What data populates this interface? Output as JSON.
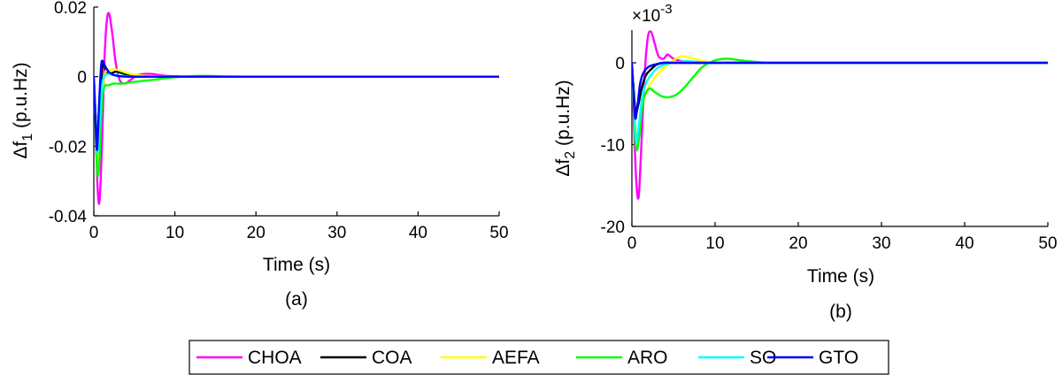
{
  "chart_data": [
    {
      "type": "line",
      "caption": "(a)",
      "xlabel": "Time (s)",
      "ylabel_main": "Δf",
      "ylabel_sub": "1",
      "ylabel_unit": " (p.u.Hz)",
      "xlim": [
        0,
        50
      ],
      "ylim": [
        -0.04,
        0.02
      ],
      "xticks": [
        0,
        10,
        20,
        30,
        40,
        50
      ],
      "yticks": [
        -0.04,
        -0.02,
        0,
        0.02
      ],
      "ytick_labels": [
        "-0.04",
        "-0.02",
        "0",
        "0.02"
      ],
      "xtick_labels": [
        "0",
        "10",
        "20",
        "30",
        "40",
        "50"
      ],
      "grid": false,
      "series": [
        {
          "name": "CHOA",
          "x": [
            0,
            0.2,
            0.45,
            0.7,
            1.0,
            1.3,
            1.6,
            1.9,
            2.3,
            2.7,
            3.2,
            3.8,
            4.5,
            5.5,
            7,
            9,
            12,
            20,
            50
          ],
          "y": [
            0,
            -0.012,
            -0.031,
            -0.036,
            -0.02,
            0.004,
            0.016,
            0.018,
            0.012,
            0.004,
            -0.001,
            -0.002,
            -0.001,
            0.0005,
            0.0008,
            0.0002,
            0,
            0,
            0
          ]
        },
        {
          "name": "COA",
          "x": [
            0,
            0.2,
            0.45,
            0.7,
            1.0,
            1.3,
            1.7,
            2.2,
            2.8,
            3.5,
            4.5,
            6,
            8,
            12,
            20,
            50
          ],
          "y": [
            0,
            -0.01,
            -0.019,
            -0.012,
            0.002,
            0.003,
            0.001,
            0.001,
            0.0015,
            0.001,
            0.0003,
            0,
            0,
            0,
            0,
            0
          ]
        },
        {
          "name": "AEFA",
          "x": [
            0,
            0.2,
            0.45,
            0.7,
            1.0,
            1.4,
            2.0,
            2.8,
            3.5,
            4.5,
            6,
            8,
            11,
            15,
            20,
            50
          ],
          "y": [
            0,
            -0.012,
            -0.026,
            -0.02,
            -0.006,
            0.001,
            0.002,
            0.002,
            0.0015,
            0.0008,
            0.0003,
            0.0001,
            0,
            0,
            0,
            0
          ]
        },
        {
          "name": "ARO",
          "x": [
            0,
            0.2,
            0.45,
            0.7,
            1.0,
            1.3,
            1.8,
            2.5,
            3.5,
            5,
            7,
            9,
            11,
            14,
            20,
            50
          ],
          "y": [
            0,
            -0.013,
            -0.028,
            -0.024,
            -0.008,
            -0.003,
            -0.0025,
            -0.002,
            -0.002,
            -0.0015,
            -0.001,
            -0.0004,
            0,
            0.0002,
            0,
            0
          ]
        },
        {
          "name": "SO",
          "x": [
            0,
            0.2,
            0.45,
            0.7,
            1.0,
            1.3,
            1.8,
            2.5,
            3.5,
            5,
            7,
            10,
            20,
            50
          ],
          "y": [
            0,
            -0.011,
            -0.022,
            -0.014,
            -0.003,
            0.0,
            0.0008,
            0.0005,
            0.0002,
            0,
            0,
            0,
            0,
            0
          ]
        },
        {
          "name": "GTO",
          "x": [
            0,
            0.2,
            0.4,
            0.65,
            0.9,
            1.1,
            1.4,
            1.8,
            2.3,
            3,
            4,
            6,
            10,
            50
          ],
          "y": [
            0,
            -0.012,
            -0.021,
            -0.008,
            0.003,
            0.0045,
            0.003,
            0.0015,
            0.0006,
            0.0002,
            0,
            0,
            0,
            0
          ]
        }
      ]
    },
    {
      "type": "line",
      "caption": "(b)",
      "xlabel": "Time (s)",
      "ylabel_main": "Δf",
      "ylabel_sub": "2",
      "ylabel_unit": " (p.u.Hz)",
      "multiplier_base": "×10",
      "multiplier_exp": "-3",
      "xlim": [
        0,
        50
      ],
      "ylim": [
        -20,
        4
      ],
      "xticks": [
        0,
        10,
        20,
        30,
        40,
        50
      ],
      "yticks": [
        -20,
        -10,
        0
      ],
      "ytick_labels": [
        "-20",
        "-10",
        "0"
      ],
      "xtick_labels": [
        "0",
        "10",
        "20",
        "30",
        "40",
        "50"
      ],
      "grid": false,
      "series": [
        {
          "name": "CHOA",
          "x": [
            0,
            0.2,
            0.5,
            0.8,
            1.1,
            1.5,
            1.9,
            2.3,
            2.7,
            3.2,
            3.8,
            4.3,
            5,
            6,
            8,
            12,
            20,
            50
          ],
          "y": [
            0,
            -6,
            -14,
            -16.5,
            -11,
            -2,
            3,
            3.8,
            2.5,
            0.8,
            0.5,
            1.0,
            0.5,
            0.2,
            0,
            0,
            0,
            0
          ]
        },
        {
          "name": "COA",
          "x": [
            0,
            0.2,
            0.45,
            0.8,
            1.2,
            1.7,
            2.3,
            3,
            4,
            6,
            10,
            50
          ],
          "y": [
            0,
            -3,
            -6,
            -5,
            -3,
            -1.5,
            -0.8,
            -0.2,
            0,
            0,
            0,
            0
          ]
        },
        {
          "name": "AEFA",
          "x": [
            0,
            0.2,
            0.5,
            0.9,
            1.3,
            2.0,
            3.0,
            4.0,
            5.0,
            6.0,
            7.5,
            9,
            11,
            15,
            50
          ],
          "y": [
            0,
            -4,
            -9,
            -8,
            -5,
            -3,
            -1.5,
            -0.5,
            0.3,
            0.8,
            0.5,
            0.1,
            0,
            0,
            0
          ]
        },
        {
          "name": "ARO",
          "x": [
            0,
            0.2,
            0.5,
            0.9,
            1.3,
            2.0,
            2.8,
            3.6,
            4.5,
            5.5,
            6.5,
            7.5,
            8.5,
            10,
            11.5,
            13,
            15,
            17,
            20,
            50
          ],
          "y": [
            0,
            -5,
            -10.5,
            -9,
            -5,
            -3.2,
            -3.6,
            -4.1,
            -4.2,
            -3.8,
            -2.8,
            -1.6,
            -0.5,
            0.3,
            0.5,
            0.3,
            0.1,
            0,
            0,
            0
          ]
        },
        {
          "name": "SO",
          "x": [
            0,
            0.2,
            0.5,
            0.8,
            1.2,
            1.7,
            2.3,
            3.0,
            4.0,
            5.0,
            6.5,
            8,
            12,
            50
          ],
          "y": [
            0,
            -4,
            -9.5,
            -8,
            -4.5,
            -2.5,
            -1.5,
            -0.7,
            -0.2,
            0,
            0.2,
            0.1,
            0,
            0
          ]
        },
        {
          "name": "GTO",
          "x": [
            0,
            0.15,
            0.4,
            0.7,
            1.0,
            1.4,
            2.0,
            2.8,
            3.8,
            5,
            8,
            50
          ],
          "y": [
            0,
            -3,
            -6.8,
            -5,
            -2.5,
            -1.2,
            -0.5,
            -0.2,
            0,
            0,
            0,
            0
          ]
        }
      ]
    }
  ],
  "legend": {
    "items": [
      {
        "name": "CHOA",
        "color": "#ff00ff"
      },
      {
        "name": "COA",
        "color": "#000000"
      },
      {
        "name": "AEFA",
        "color": "#ffff00"
      },
      {
        "name": "ARO",
        "color": "#00ff00"
      },
      {
        "name": "SO",
        "color": "#00ffff"
      },
      {
        "name": "GTO",
        "color": "#0000ff"
      }
    ]
  }
}
